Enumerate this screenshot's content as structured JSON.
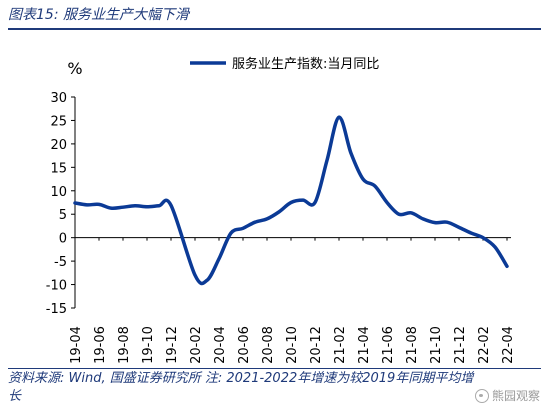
{
  "title": "图表15: 服务业生产大幅下滑",
  "footer": {
    "source": "资料来源: Wind, 国盛证券研究所 注: 2021-2022年增速为较2019年同期平均增长",
    "watermark": "熊园观察"
  },
  "chart_data": {
    "type": "line",
    "ylabel": "%",
    "ylim": [
      -15,
      30
    ],
    "yticks": [
      30,
      25,
      20,
      15,
      10,
      5,
      0,
      -5,
      -10,
      -15
    ],
    "grid": false,
    "legend_position": "top-right",
    "color": "#0b3a96",
    "x_tick_labels": [
      "19-04",
      "19-06",
      "19-08",
      "19-10",
      "19-12",
      "20-02",
      "20-04",
      "20-06",
      "20-08",
      "20-10",
      "20-12",
      "21-02",
      "21-04",
      "21-06",
      "21-08",
      "21-10",
      "21-12",
      "22-02",
      "22-04"
    ],
    "series": [
      {
        "name": "服务业生产指数:当月同比",
        "x": [
          "19-04",
          "19-05",
          "19-06",
          "19-07",
          "19-08",
          "19-09",
          "19-10",
          "19-11",
          "19-12",
          "20-02",
          "20-03",
          "20-04",
          "20-05",
          "20-06",
          "20-07",
          "20-08",
          "20-09",
          "20-10",
          "20-11",
          "20-12",
          "21-01",
          "21-02",
          "21-03",
          "21-04",
          "21-05",
          "21-06",
          "21-07",
          "21-08",
          "21-09",
          "21-10",
          "21-11",
          "21-12",
          "22-01",
          "22-02",
          "22-03",
          "22-04"
        ],
        "values": [
          7.4,
          7.0,
          7.1,
          6.3,
          6.5,
          6.8,
          6.6,
          6.8,
          6.9,
          -8.0,
          -9.1,
          -4.5,
          1.0,
          2.0,
          3.3,
          4.0,
          5.5,
          7.5,
          8.0,
          7.5,
          16.5,
          25.7,
          18.0,
          12.5,
          11.0,
          7.5,
          5.0,
          5.3,
          4.0,
          3.2,
          3.3,
          2.2,
          1.0,
          0.0,
          -2.0,
          -6.1
        ]
      }
    ]
  }
}
